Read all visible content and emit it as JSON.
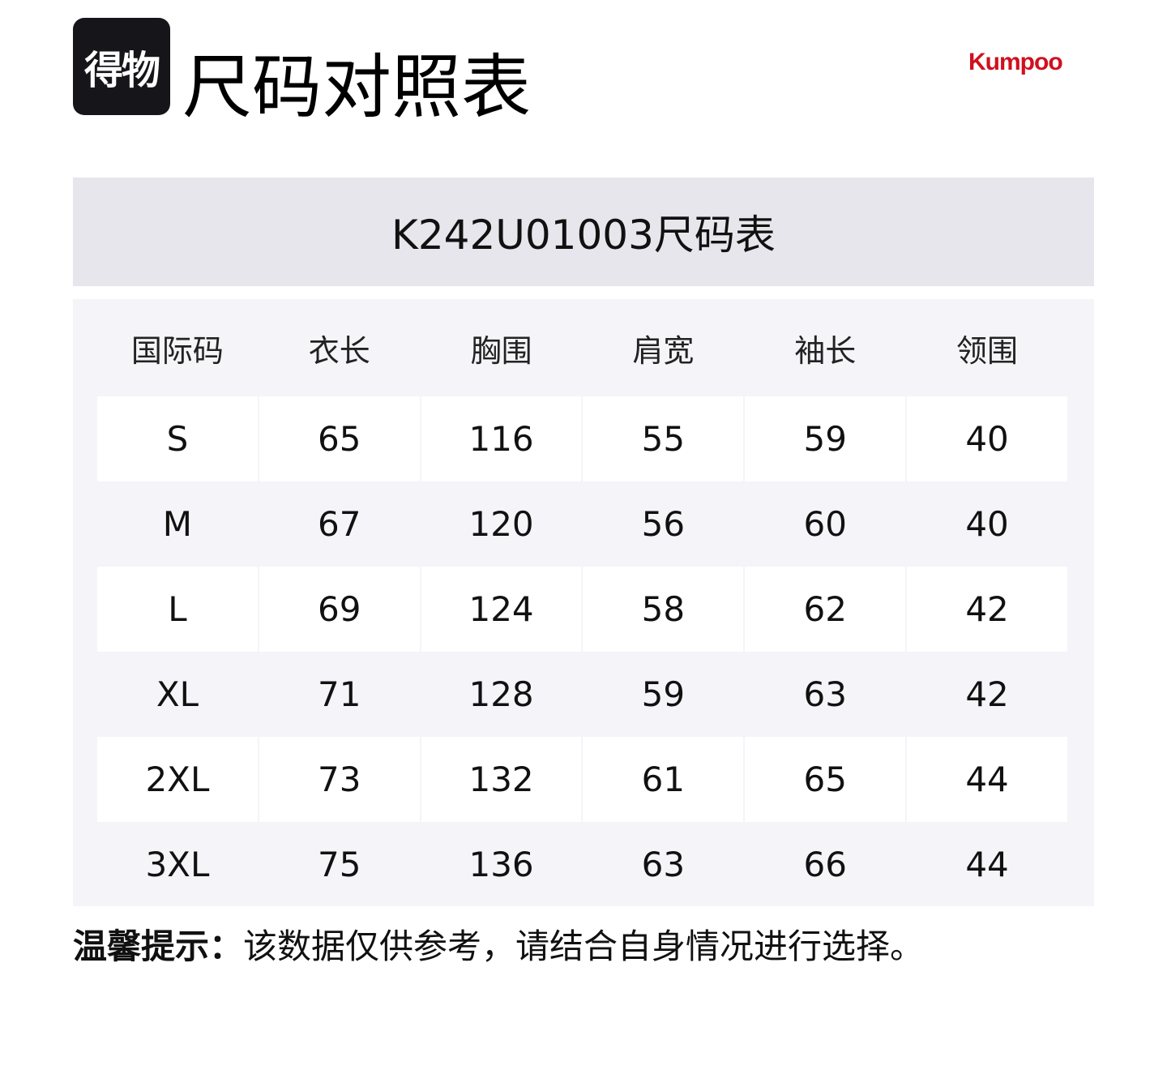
{
  "header": {
    "logo_text": "得物",
    "title": "尺码对照表",
    "brand": "Kumpoo",
    "brand_color": "#d0101e"
  },
  "table": {
    "caption": "K242U01003尺码表",
    "columns": [
      "国际码",
      "衣长",
      "胸围",
      "肩宽",
      "袖长",
      "领围"
    ],
    "rows": [
      [
        "S",
        "65",
        "116",
        "55",
        "59",
        "40"
      ],
      [
        "M",
        "67",
        "120",
        "56",
        "60",
        "40"
      ],
      [
        "L",
        "69",
        "124",
        "58",
        "62",
        "42"
      ],
      [
        "XL",
        "71",
        "128",
        "59",
        "63",
        "42"
      ],
      [
        "2XL",
        "73",
        "132",
        "61",
        "65",
        "44"
      ],
      [
        "3XL",
        "75",
        "136",
        "63",
        "66",
        "44"
      ]
    ]
  },
  "note": {
    "label": "温馨提示：",
    "text": "该数据仅供参考，请结合自身情况进行选择。"
  }
}
